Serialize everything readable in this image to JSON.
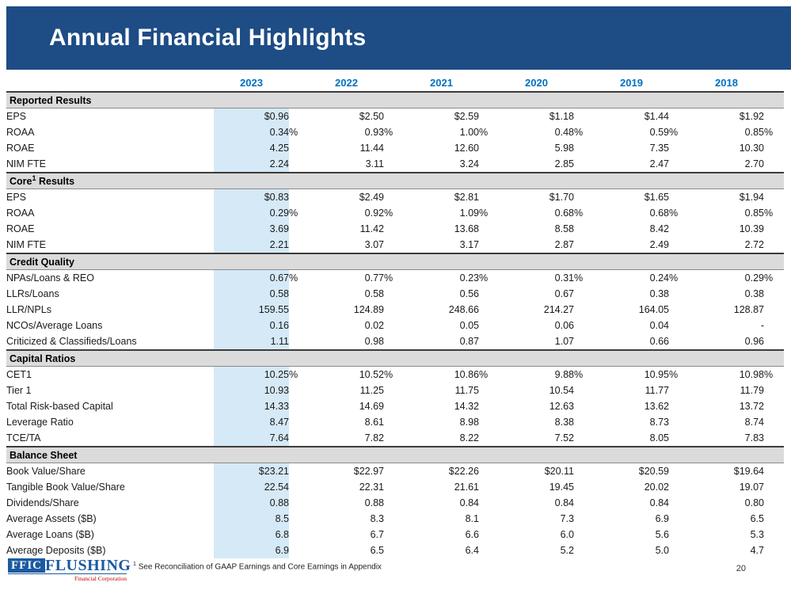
{
  "slide": {
    "title": "Annual Financial Highlights"
  },
  "colors": {
    "banner_blue": "#1E4C85",
    "year_header_blue": "#0070C0",
    "highlight_column_blue": "#D5E9F7",
    "section_header_gray": "#DBDBDB",
    "logo_blue": "#1C5AA0",
    "logo_red": "#C00000"
  },
  "table": {
    "years": [
      "2023",
      "2022",
      "2021",
      "2020",
      "2019",
      "2018"
    ],
    "highlight_year": "2023",
    "sections": [
      {
        "header": "Reported Results",
        "header_sup": "",
        "header_rest": "",
        "rows": [
          {
            "label": "EPS",
            "pct": false,
            "values": [
              "$0.96",
              "$2.50",
              "$2.59",
              "$1.18",
              "$1.44",
              "$1.92"
            ]
          },
          {
            "label": "ROAA",
            "pct": true,
            "values": [
              "0.34",
              "0.93",
              "1.00",
              "0.48",
              "0.59",
              "0.85"
            ]
          },
          {
            "label": "ROAE",
            "pct": false,
            "values": [
              "4.25",
              "11.44",
              "12.60",
              "5.98",
              "7.35",
              "10.30"
            ]
          },
          {
            "label": "NIM FTE",
            "pct": false,
            "values": [
              "2.24",
              "3.11",
              "3.24",
              "2.85",
              "2.47",
              "2.70"
            ]
          }
        ]
      },
      {
        "header": "Core",
        "header_sup": "1",
        "header_rest": " Results",
        "rows": [
          {
            "label": "EPS",
            "pct": false,
            "values": [
              "$0.83",
              "$2.49",
              "$2.81",
              "$1.70",
              "$1.65",
              "$1.94"
            ]
          },
          {
            "label": "ROAA",
            "pct": true,
            "values": [
              "0.29",
              "0.92",
              "1.09",
              "0.68",
              "0.68",
              "0.85"
            ]
          },
          {
            "label": "ROAE",
            "pct": false,
            "values": [
              "3.69",
              "11.42",
              "13.68",
              "8.58",
              "8.42",
              "10.39"
            ]
          },
          {
            "label": "NIM FTE",
            "pct": false,
            "values": [
              "2.21",
              "3.07",
              "3.17",
              "2.87",
              "2.49",
              "2.72"
            ]
          }
        ]
      },
      {
        "header": "Credit Quality",
        "header_sup": "",
        "header_rest": "",
        "rows": [
          {
            "label": "NPAs/Loans & REO",
            "pct": true,
            "values": [
              "0.67",
              "0.77",
              "0.23",
              "0.31",
              "0.24",
              "0.29"
            ]
          },
          {
            "label": "LLRs/Loans",
            "pct": false,
            "values": [
              "0.58",
              "0.58",
              "0.56",
              "0.67",
              "0.38",
              "0.38"
            ]
          },
          {
            "label": "LLR/NPLs",
            "pct": false,
            "values": [
              "159.55",
              "124.89",
              "248.66",
              "214.27",
              "164.05",
              "128.87"
            ]
          },
          {
            "label": "NCOs/Average Loans",
            "pct": false,
            "values": [
              "0.16",
              "0.02",
              "0.05",
              "0.06",
              "0.04",
              "-"
            ]
          },
          {
            "label": "Criticized & Classifieds/Loans",
            "pct": false,
            "values": [
              "1.11",
              "0.98",
              "0.87",
              "1.07",
              "0.66",
              "0.96"
            ]
          }
        ]
      },
      {
        "header": "Capital Ratios",
        "header_sup": "",
        "header_rest": "",
        "rows": [
          {
            "label": "CET1",
            "pct": true,
            "values": [
              "10.25",
              "10.52",
              "10.86",
              "9.88",
              "10.95",
              "10.98"
            ]
          },
          {
            "label": "Tier 1",
            "pct": false,
            "values": [
              "10.93",
              "11.25",
              "11.75",
              "10.54",
              "11.77",
              "11.79"
            ]
          },
          {
            "label": "Total Risk-based Capital",
            "pct": false,
            "values": [
              "14.33",
              "14.69",
              "14.32",
              "12.63",
              "13.62",
              "13.72"
            ]
          },
          {
            "label": "Leverage Ratio",
            "pct": false,
            "values": [
              "8.47",
              "8.61",
              "8.98",
              "8.38",
              "8.73",
              "8.74"
            ]
          },
          {
            "label": "TCE/TA",
            "pct": false,
            "values": [
              "7.64",
              "7.82",
              "8.22",
              "7.52",
              "8.05",
              "7.83"
            ]
          }
        ]
      },
      {
        "header": "Balance Sheet",
        "header_sup": "",
        "header_rest": "",
        "rows": [
          {
            "label": "Book Value/Share",
            "pct": false,
            "values": [
              "$23.21",
              "$22.97",
              "$22.26",
              "$20.11",
              "$20.59",
              "$19.64"
            ]
          },
          {
            "label": "Tangible Book Value/Share",
            "pct": false,
            "values": [
              "22.54",
              "22.31",
              "21.61",
              "19.45",
              "20.02",
              "19.07"
            ]
          },
          {
            "label": "Dividends/Share",
            "pct": false,
            "values": [
              "0.88",
              "0.88",
              "0.84",
              "0.84",
              "0.84",
              "0.80"
            ]
          },
          {
            "label": "Average Assets ($B)",
            "pct": false,
            "values": [
              "8.5",
              "8.3",
              "8.1",
              "7.3",
              "6.9",
              "6.5"
            ]
          },
          {
            "label": "Average Loans ($B)",
            "pct": false,
            "values": [
              "6.8",
              "6.7",
              "6.6",
              "6.0",
              "5.6",
              "5.3"
            ]
          },
          {
            "label": "Average Deposits ($B)",
            "pct": false,
            "values": [
              "6.9",
              "6.5",
              "6.4",
              "5.2",
              "5.0",
              "4.7"
            ]
          }
        ]
      }
    ]
  },
  "footer": {
    "logo": {
      "ffic": "FFIC",
      "name": "FLUSHING",
      "subtitle": "Financial Corporation"
    },
    "footnote_sup": "1",
    "footnote_text": "See Reconciliation of GAAP Earnings and Core Earnings in Appendix",
    "page_number": "20"
  }
}
